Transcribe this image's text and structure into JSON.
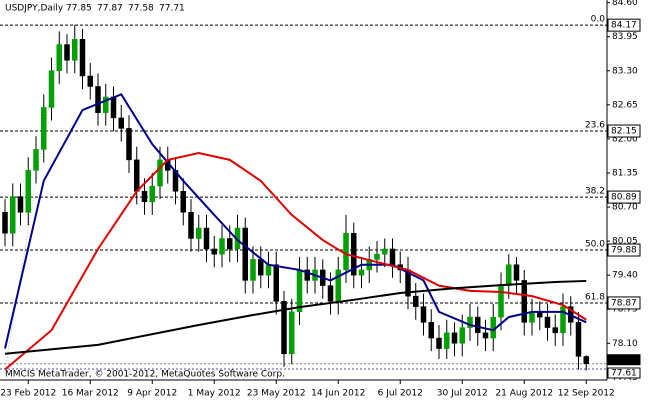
{
  "chart_data": {
    "type": "candlestick",
    "header": {
      "symbol": "USDJPY,Daily",
      "ohlc": [
        77.85,
        77.87,
        77.58,
        77.71
      ]
    },
    "watermark": "MMCIS MetaTrader, © 2001-2012, MetaQuotes Software Corp.",
    "categories": [
      null,
      null,
      null,
      "23 Feb 2012",
      null,
      null,
      null,
      null,
      null,
      null,
      null,
      "16 Mar 2012",
      null,
      null,
      null,
      null,
      null,
      null,
      null,
      "9 Apr 2012",
      null,
      null,
      null,
      null,
      null,
      null,
      null,
      "1 May 2012",
      null,
      null,
      null,
      null,
      null,
      null,
      null,
      "23 May 2012",
      null,
      null,
      null,
      null,
      null,
      null,
      null,
      "14 Jun 2012",
      null,
      null,
      null,
      null,
      null,
      null,
      null,
      "6 Jul 2012",
      null,
      null,
      null,
      null,
      null,
      null,
      null,
      "30 Jul 2012",
      null,
      null,
      null,
      null,
      null,
      null,
      null,
      "21 Aug 2012",
      null,
      null,
      null,
      null,
      null,
      null,
      null,
      "12 Sep 2012"
    ],
    "open": [
      80.6,
      80.2,
      80.9,
      80.6,
      81.4,
      81.8,
      82.6,
      83.3,
      83.8,
      83.5,
      83.9,
      83.2,
      83.0,
      82.5,
      82.8,
      82.4,
      82.2,
      81.6,
      81.0,
      80.8,
      81.1,
      81.6,
      81.4,
      81.0,
      80.6,
      80.1,
      80.3,
      79.9,
      79.8,
      80.1,
      79.9,
      80.3,
      79.3,
      79.7,
      79.4,
      79.6,
      78.9,
      77.9,
      78.7,
      79.5,
      79.3,
      79.5,
      79.2,
      78.9,
      79.5,
      80.2,
      79.4,
      79.5,
      79.7,
      79.8,
      79.9,
      79.6,
      79.5,
      79.0,
      78.8,
      78.5,
      78.2,
      78.0,
      78.3,
      78.1,
      78.4,
      78.6,
      78.3,
      78.2,
      78.6,
      79.2,
      79.6,
      79.3,
      78.5,
      78.7,
      78.6,
      78.4,
      78.3,
      78.8,
      78.5,
      77.85
    ],
    "high": [
      80.85,
      81.15,
      81.15,
      81.65,
      82.05,
      82.85,
      83.55,
      84.05,
      84.0,
      84.17,
      84.1,
      83.45,
      83.25,
      83.05,
      83.0,
      82.65,
      82.45,
      81.85,
      81.25,
      81.35,
      81.85,
      81.85,
      81.65,
      81.25,
      80.85,
      80.55,
      80.55,
      80.15,
      80.35,
      80.35,
      80.55,
      80.5,
      79.95,
      79.95,
      79.85,
      79.85,
      79.1,
      78.95,
      79.75,
      79.75,
      79.75,
      79.7,
      79.45,
      79.75,
      80.55,
      80.4,
      79.75,
      79.95,
      80.05,
      80.1,
      80.1,
      79.85,
      79.75,
      79.25,
      79.05,
      78.75,
      78.45,
      78.55,
      78.5,
      78.65,
      78.85,
      78.8,
      78.55,
      78.85,
      79.45,
      79.8,
      79.75,
      79.5,
      78.95,
      78.9,
      78.85,
      78.65,
      79.05,
      79.0,
      78.7,
      77.87
    ],
    "low": [
      79.95,
      79.95,
      80.35,
      80.35,
      81.15,
      81.55,
      82.35,
      83.05,
      83.25,
      83.25,
      82.95,
      82.75,
      82.25,
      82.25,
      82.15,
      81.95,
      81.35,
      80.75,
      80.55,
      80.55,
      80.85,
      81.15,
      80.75,
      80.35,
      79.85,
      79.85,
      79.65,
      79.55,
      79.55,
      79.65,
      79.65,
      79.05,
      79.05,
      79.15,
      79.15,
      78.65,
      77.65,
      77.7,
      78.45,
      79.05,
      79.05,
      78.95,
      78.65,
      78.65,
      79.25,
      79.15,
      79.15,
      79.25,
      79.45,
      79.55,
      79.35,
      79.25,
      78.75,
      78.55,
      78.25,
      77.95,
      77.8,
      77.8,
      77.85,
      77.85,
      78.15,
      78.05,
      77.95,
      77.95,
      78.35,
      78.95,
      79.05,
      78.25,
      78.25,
      78.35,
      78.15,
      78.05,
      78.05,
      78.25,
      77.6,
      77.58
    ],
    "close": [
      80.2,
      80.9,
      80.6,
      81.4,
      81.8,
      82.6,
      83.3,
      83.8,
      83.5,
      83.9,
      83.2,
      83.0,
      82.5,
      82.8,
      82.4,
      82.2,
      81.6,
      81.0,
      80.8,
      81.1,
      81.6,
      81.4,
      81.0,
      80.6,
      80.1,
      80.3,
      79.9,
      79.8,
      80.1,
      79.9,
      80.3,
      79.3,
      79.7,
      79.4,
      79.6,
      78.9,
      77.9,
      78.7,
      79.5,
      79.3,
      79.5,
      79.2,
      78.9,
      79.5,
      80.2,
      79.4,
      79.5,
      79.7,
      79.8,
      79.9,
      79.6,
      79.5,
      79.0,
      78.8,
      78.5,
      78.2,
      78.0,
      78.3,
      78.1,
      78.4,
      78.6,
      78.3,
      78.2,
      78.6,
      79.2,
      79.6,
      79.3,
      78.5,
      78.7,
      78.6,
      78.4,
      78.3,
      78.8,
      78.5,
      77.85,
      77.71
    ],
    "up_color": "#00a000",
    "down_color": "#000000",
    "overlays": [
      {
        "color": "#00008b",
        "x": [
          0,
          5,
          10,
          15,
          19,
          23,
          27,
          30,
          34,
          38,
          42,
          46,
          50,
          54,
          56,
          60,
          63,
          65,
          68,
          72,
          75
        ],
        "values": [
          78.0,
          81.2,
          82.55,
          82.85,
          81.9,
          81.2,
          80.55,
          80.07,
          79.6,
          79.5,
          79.3,
          79.6,
          79.6,
          79.3,
          78.7,
          78.45,
          78.35,
          78.6,
          78.7,
          78.7,
          78.5
        ]
      },
      {
        "color": "#e00000",
        "x": [
          0,
          6,
          12,
          17,
          21,
          25,
          29,
          33,
          37,
          41,
          44,
          48,
          52,
          56,
          60,
          64,
          68,
          72,
          75
        ],
        "values": [
          77.6,
          78.35,
          79.9,
          81.0,
          81.6,
          81.73,
          81.6,
          81.2,
          80.55,
          80.07,
          79.8,
          79.65,
          79.5,
          79.2,
          79.1,
          79.08,
          79.0,
          78.83,
          78.55
        ]
      },
      {
        "color": "#000000",
        "x": [
          0,
          12,
          25,
          32,
          38,
          45,
          51,
          58,
          64,
          71,
          75
        ],
        "values": [
          77.9,
          78.07,
          78.45,
          78.64,
          78.79,
          78.93,
          79.06,
          79.15,
          79.21,
          79.27,
          79.29
        ]
      }
    ],
    "fib_levels": [
      {
        "level": "0.0",
        "price": 84.17
      },
      {
        "level": "23.6",
        "price": 82.15
      },
      {
        "level": "38.2",
        "price": 80.89
      },
      {
        "level": "50.0",
        "price": 79.88
      },
      {
        "level": "61.8",
        "price": 78.87
      }
    ],
    "price_markers": [
      77.71,
      77.61
    ],
    "ylim": [
      77.4,
      84.65
    ],
    "yticks": [
      {
        "value": 84.6,
        "label": "84.60"
      },
      83.95,
      {
        "value": 83.3,
        "label": "83.30"
      },
      82.65,
      {
        "value": 82.0,
        "label": "82.00"
      },
      81.35,
      {
        "value": 80.7,
        "label": "80.70"
      },
      80.05,
      {
        "value": 79.4,
        "label": "79.40"
      },
      78.75,
      {
        "value": 78.1,
        "label": "78.10"
      },
      77.45
    ]
  }
}
